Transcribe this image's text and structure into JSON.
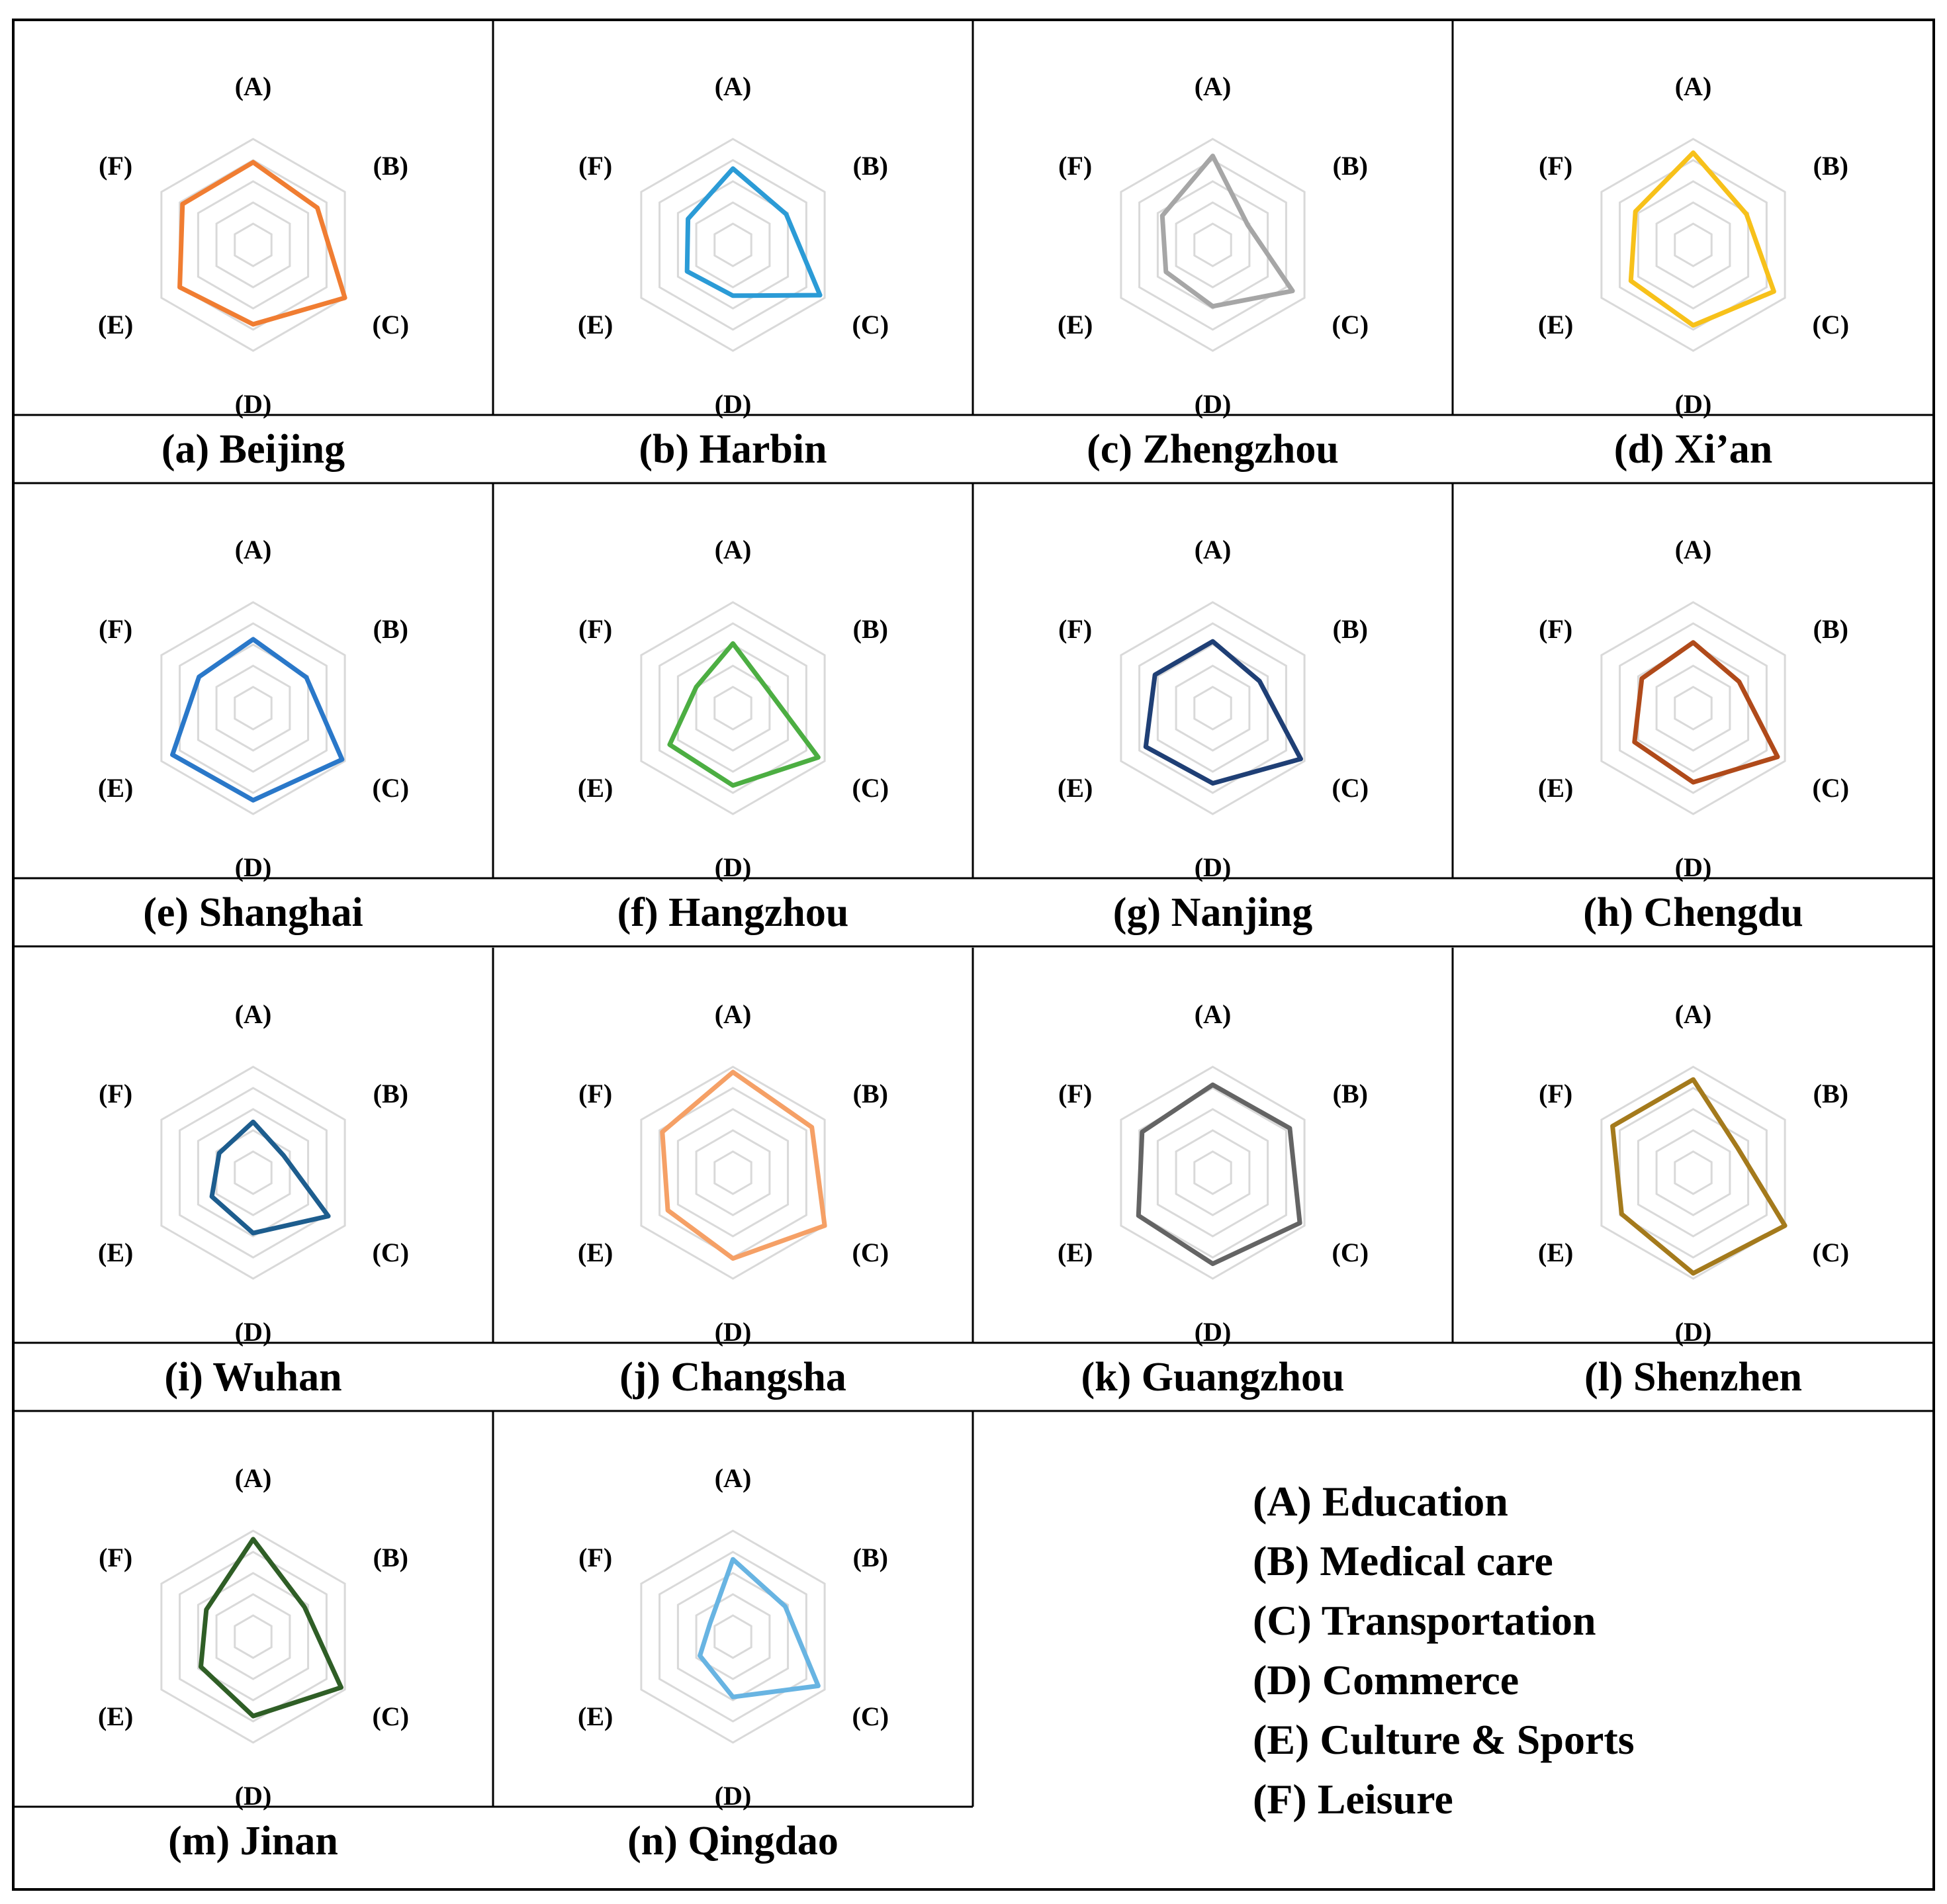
{
  "axes": [
    "(A)",
    "(B)",
    "(C)",
    "(D)",
    "(E)",
    "(F)"
  ],
  "legend": [
    "(A) Education",
    "(B) Medical care",
    "(C) Transportation",
    "(D) Commerce",
    "(E) Culture & Sports",
    "(F) Leisure"
  ],
  "chart_data": [
    {
      "type": "radar",
      "title": "(a) Beijing",
      "color": "#f07d32",
      "categories": [
        "(A)",
        "(B)",
        "(C)",
        "(D)",
        "(E)",
        "(F)"
      ],
      "values": [
        0.78,
        0.7,
        1.0,
        0.75,
        0.8,
        0.77
      ],
      "ylim": [
        0,
        1
      ],
      "grid": true
    },
    {
      "type": "radar",
      "title": "(b) Harbin",
      "color": "#2b9bd6",
      "categories": [
        "(A)",
        "(B)",
        "(C)",
        "(D)",
        "(E)",
        "(F)"
      ],
      "values": [
        0.72,
        0.58,
        0.95,
        0.48,
        0.5,
        0.49
      ],
      "ylim": [
        0,
        1
      ],
      "grid": true
    },
    {
      "type": "radar",
      "title": "(c) Zhengzhou",
      "color": "#a6a6a6",
      "categories": [
        "(A)",
        "(B)",
        "(C)",
        "(D)",
        "(E)",
        "(F)"
      ],
      "values": [
        0.84,
        0.38,
        0.87,
        0.58,
        0.51,
        0.55
      ],
      "ylim": [
        0,
        1
      ],
      "grid": true
    },
    {
      "type": "radar",
      "title": "(d) Xi’an",
      "color": "#f7c11a",
      "categories": [
        "(A)",
        "(B)",
        "(C)",
        "(D)",
        "(E)",
        "(F)"
      ],
      "values": [
        0.87,
        0.58,
        0.88,
        0.76,
        0.68,
        0.63
      ],
      "ylim": [
        0,
        1
      ],
      "grid": true
    },
    {
      "type": "radar",
      "title": "(e) Shanghai",
      "color": "#2a78c9",
      "categories": [
        "(A)",
        "(B)",
        "(C)",
        "(D)",
        "(E)",
        "(F)"
      ],
      "values": [
        0.65,
        0.58,
        0.97,
        0.87,
        0.88,
        0.59
      ],
      "ylim": [
        0,
        1
      ],
      "grid": true
    },
    {
      "type": "radar",
      "title": "(f) Hangzhou",
      "color": "#4cae42",
      "categories": [
        "(A)",
        "(B)",
        "(C)",
        "(D)",
        "(E)",
        "(F)"
      ],
      "values": [
        0.61,
        0.37,
        0.93,
        0.73,
        0.69,
        0.4
      ],
      "ylim": [
        0,
        1
      ],
      "grid": true
    },
    {
      "type": "radar",
      "title": "(g) Nanjing",
      "color": "#1f3f75",
      "categories": [
        "(A)",
        "(B)",
        "(C)",
        "(D)",
        "(E)",
        "(F)"
      ],
      "values": [
        0.63,
        0.51,
        0.96,
        0.71,
        0.73,
        0.63
      ],
      "ylim": [
        0,
        1
      ],
      "grid": true
    },
    {
      "type": "radar",
      "title": "(h) Chengdu",
      "color": "#b04a1a",
      "categories": [
        "(A)",
        "(B)",
        "(C)",
        "(D)",
        "(E)",
        "(F)"
      ],
      "values": [
        0.62,
        0.5,
        0.92,
        0.7,
        0.64,
        0.56
      ],
      "ylim": [
        0,
        1
      ],
      "grid": true
    },
    {
      "type": "radar",
      "title": "(i) Wuhan",
      "color": "#1d5d8e",
      "categories": [
        "(A)",
        "(B)",
        "(C)",
        "(D)",
        "(E)",
        "(F)"
      ],
      "values": [
        0.48,
        0.33,
        0.82,
        0.57,
        0.45,
        0.37
      ],
      "ylim": [
        0,
        1
      ],
      "grid": true
    },
    {
      "type": "radar",
      "title": "(j) Changsha",
      "color": "#f5a066",
      "categories": [
        "(A)",
        "(B)",
        "(C)",
        "(D)",
        "(E)",
        "(F)"
      ],
      "values": [
        0.95,
        0.86,
        1.0,
        0.81,
        0.71,
        0.77
      ],
      "ylim": [
        0,
        1
      ],
      "grid": true
    },
    {
      "type": "radar",
      "title": "(k) Guangzhou",
      "color": "#646464",
      "categories": [
        "(A)",
        "(B)",
        "(C)",
        "(D)",
        "(E)",
        "(F)"
      ],
      "values": [
        0.83,
        0.84,
        0.95,
        0.86,
        0.81,
        0.77
      ],
      "ylim": [
        0,
        1
      ],
      "grid": true
    },
    {
      "type": "radar",
      "title": "(l) Shenzhen",
      "color": "#a47a1c",
      "categories": [
        "(A)",
        "(B)",
        "(C)",
        "(D)",
        "(E)",
        "(F)"
      ],
      "values": [
        0.88,
        0.48,
        1.0,
        0.95,
        0.78,
        0.88
      ],
      "ylim": [
        0,
        1
      ],
      "grid": true
    },
    {
      "type": "radar",
      "title": "(m) Jinan",
      "color": "#2f5e26",
      "categories": [
        "(A)",
        "(B)",
        "(C)",
        "(D)",
        "(E)",
        "(F)"
      ],
      "values": [
        0.92,
        0.56,
        0.96,
        0.75,
        0.57,
        0.51
      ],
      "ylim": [
        0,
        1
      ],
      "grid": true
    },
    {
      "type": "radar",
      "title": "(n) Qingdao",
      "color": "#68b4e2",
      "categories": [
        "(A)",
        "(B)",
        "(C)",
        "(D)",
        "(E)",
        "(F)"
      ],
      "values": [
        0.73,
        0.57,
        0.93,
        0.57,
        0.36,
        0.25
      ],
      "ylim": [
        0,
        1
      ],
      "grid": true
    }
  ]
}
